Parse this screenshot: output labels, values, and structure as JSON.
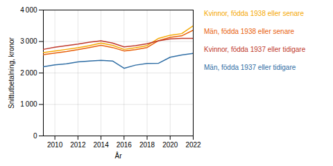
{
  "chart_data": {
    "type": "line",
    "x": [
      2009,
      2010,
      2011,
      2012,
      2013,
      2014,
      2015,
      2016,
      2017,
      2018,
      2019,
      2020,
      2021,
      2022
    ],
    "series": [
      {
        "name": "Kvinnor, födda 1938 eller senare",
        "color": "#f5a800",
        "values": [
          2650,
          2700,
          2750,
          2800,
          2870,
          2950,
          2880,
          2750,
          2800,
          2870,
          3100,
          3200,
          3250,
          3500
        ]
      },
      {
        "name": "Män, födda 1938 eller senare",
        "color": "#e8600a",
        "values": [
          2580,
          2630,
          2680,
          2740,
          2810,
          2880,
          2810,
          2700,
          2740,
          2810,
          3030,
          3130,
          3180,
          3360
        ]
      },
      {
        "name": "Kvinnor, födda 1937 eller tidigare",
        "color": "#c0392b",
        "values": [
          2750,
          2820,
          2870,
          2920,
          2980,
          3020,
          2950,
          2830,
          2870,
          2930,
          3020,
          3080,
          3100,
          3100
        ]
      },
      {
        "name": "Män, födda 1937 eller tidigare",
        "color": "#2e6da4",
        "values": [
          2200,
          2260,
          2290,
          2350,
          2380,
          2400,
          2380,
          2150,
          2250,
          2300,
          2310,
          2500,
          2570,
          2620
        ]
      }
    ],
    "xlabel": "År",
    "ylabel": "Snittutbetalning, kronor",
    "xlim": [
      2009,
      2022
    ],
    "xticks": [
      2010,
      2012,
      2014,
      2016,
      2018,
      2020,
      2022
    ],
    "ylim": [
      0,
      4000
    ],
    "yticks": [
      0,
      {
        "value": 1000,
        "label": "1 000"
      },
      {
        "value": 2000,
        "label": "2 000"
      },
      {
        "value": 3000,
        "label": "3 000"
      },
      {
        "value": 4000,
        "label": "4 000"
      }
    ],
    "grid": true,
    "legend": "right"
  }
}
